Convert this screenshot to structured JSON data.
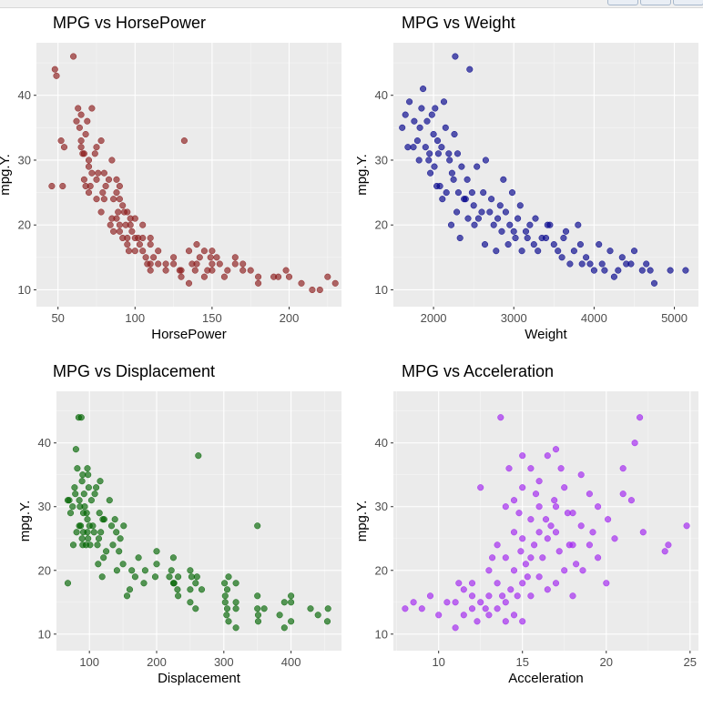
{
  "window": {
    "toolbar_buttons": [
      "zoom-button",
      "export-button",
      "popout-button"
    ]
  },
  "colors": {
    "panel_background": "#ebebeb",
    "grid_major": "#ffffff",
    "tick_text": "#4d4d4d",
    "title_text": "#000000"
  },
  "chart_data": [
    {
      "type": "scatter",
      "title": "MPG vs HorsePower",
      "xlabel": "HorsePower",
      "ylabel": "mpg.Y.",
      "xlim": [
        36,
        234
      ],
      "ylim": [
        7.4,
        48.1
      ],
      "xticks": [
        50,
        100,
        150,
        200
      ],
      "yticks": [
        10,
        20,
        30,
        40
      ],
      "color": "#8b1a1a",
      "grid": true,
      "x": [
        46,
        48,
        49,
        52,
        53,
        54,
        60,
        62,
        63,
        64,
        65,
        65,
        65,
        66,
        67,
        67,
        68,
        68,
        69,
        70,
        70,
        70,
        71,
        72,
        72,
        74,
        75,
        75,
        75,
        76,
        78,
        78,
        79,
        80,
        80,
        81,
        83,
        84,
        85,
        85,
        86,
        86,
        88,
        88,
        88,
        89,
        90,
        90,
        90,
        90,
        92,
        92,
        93,
        94,
        95,
        95,
        95,
        96,
        97,
        97,
        98,
        100,
        100,
        100,
        102,
        103,
        105,
        105,
        105,
        107,
        108,
        110,
        110,
        110,
        110,
        112,
        115,
        115,
        120,
        120,
        125,
        125,
        129,
        130,
        130,
        132,
        135,
        135,
        137,
        139,
        140,
        140,
        142,
        145,
        145,
        147,
        149,
        150,
        150,
        150,
        153,
        155,
        158,
        160,
        165,
        165,
        170,
        170,
        175,
        180,
        180,
        190,
        193,
        198,
        200,
        208,
        215,
        220,
        225,
        230
      ],
      "y": [
        26,
        44,
        43,
        33,
        26,
        32,
        46,
        36,
        38,
        35,
        37,
        33,
        32,
        31,
        31,
        27,
        26,
        34,
        36,
        29,
        25,
        30,
        26,
        38,
        28,
        31,
        24,
        27,
        32,
        28,
        22,
        33,
        25,
        24,
        28,
        26,
        27,
        20,
        21,
        30,
        19,
        24,
        21,
        25,
        27,
        22,
        19,
        20,
        24,
        26,
        23,
        18,
        22,
        20,
        18,
        17,
        22,
        16,
        20,
        21,
        19,
        18,
        16,
        21,
        18,
        17,
        18,
        20,
        16,
        15,
        14,
        18,
        14,
        17,
        13,
        15,
        14,
        16,
        14,
        13,
        14,
        15,
        13,
        12,
        13,
        33,
        11,
        16,
        14,
        13,
        17,
        14,
        15,
        12,
        16,
        13,
        15,
        14,
        16,
        13,
        15,
        14,
        12,
        13,
        15,
        14,
        14,
        13,
        13,
        12,
        11,
        12,
        12,
        13,
        12,
        11,
        10,
        10,
        12,
        11
      ],
      "chart_type": "scatter"
    },
    {
      "type": "scatter",
      "title": "MPG vs Weight",
      "xlabel": "Weight",
      "ylabel": "mpg.Y.",
      "xlim": [
        1500,
        5300
      ],
      "ylim": [
        7.4,
        48.1
      ],
      "xticks": [
        2000,
        3000,
        4000,
        5000
      ],
      "yticks": [
        10,
        20,
        30,
        40
      ],
      "color": "#00008b",
      "grid": true,
      "x": [
        1610,
        1650,
        1680,
        1700,
        1750,
        1760,
        1800,
        1820,
        1830,
        1850,
        1870,
        1900,
        1920,
        1940,
        1950,
        1960,
        1980,
        2000,
        2010,
        2020,
        2040,
        2050,
        2060,
        2080,
        2100,
        2110,
        2130,
        2150,
        2160,
        2190,
        2200,
        2220,
        2230,
        2250,
        2260,
        2270,
        2290,
        2300,
        2310,
        2330,
        2350,
        2380,
        2400,
        2420,
        2430,
        2450,
        2480,
        2500,
        2510,
        2540,
        2560,
        2600,
        2620,
        2640,
        2650,
        2700,
        2720,
        2750,
        2780,
        2800,
        2830,
        2850,
        2870,
        2900,
        2930,
        2950,
        2980,
        3000,
        3020,
        3050,
        3080,
        3100,
        3150,
        3170,
        3200,
        3250,
        3270,
        3300,
        3350,
        3400,
        3420,
        3450,
        3500,
        3550,
        3600,
        3620,
        3650,
        3700,
        3750,
        3800,
        3830,
        3850,
        3900,
        3950,
        4000,
        4060,
        4100,
        4130,
        4200,
        4250,
        4300,
        4350,
        4400,
        4460,
        4500,
        4600,
        4650,
        4700,
        4750,
        4950,
        5140
      ],
      "y": [
        35,
        37,
        32,
        39,
        32,
        36,
        33,
        30,
        35,
        38,
        41,
        32,
        36,
        30,
        31,
        28,
        37,
        34,
        29,
        38,
        26,
        33,
        31,
        26,
        32,
        24,
        39,
        35,
        25,
        31,
        30,
        20,
        28,
        27,
        34,
        46,
        22,
        31,
        25,
        18,
        29,
        24,
        24,
        27,
        21,
        44,
        25,
        23,
        20,
        29,
        21,
        22,
        25,
        17,
        30,
        22,
        24,
        20,
        16,
        21,
        23,
        19,
        27,
        22,
        17,
        20,
        25,
        19,
        18,
        21,
        23,
        16,
        19,
        18,
        20,
        17,
        21,
        16,
        18,
        18,
        20,
        20,
        17,
        16,
        15,
        18,
        19,
        14,
        16,
        20,
        17,
        14,
        15,
        14,
        13,
        17,
        14,
        13,
        16,
        12,
        13,
        15,
        14,
        14,
        16,
        13,
        14,
        13,
        11,
        13,
        13
      ],
      "chart_type": "scatter"
    },
    {
      "type": "scatter",
      "title": "MPG vs Displacement",
      "xlabel": "Displacement",
      "ylabel": "mpg.Y.",
      "xlim": [
        51,
        475
      ],
      "ylim": [
        7.4,
        48.1
      ],
      "xticks": [
        100,
        200,
        300,
        400
      ],
      "yticks": [
        10,
        20,
        30,
        40
      ],
      "color": "#006400",
      "grid": true,
      "x": [
        68,
        68,
        70,
        72,
        75,
        76,
        78,
        79,
        80,
        81,
        82,
        84,
        85,
        85,
        86,
        87,
        88,
        89,
        89,
        90,
        90,
        91,
        91,
        92,
        93,
        95,
        96,
        97,
        97,
        97,
        98,
        98,
        99,
        100,
        101,
        103,
        105,
        107,
        108,
        110,
        112,
        113,
        114,
        115,
        116,
        117,
        119,
        120,
        121,
        122,
        125,
        130,
        133,
        135,
        138,
        140,
        141,
        144,
        146,
        150,
        151,
        156,
        160,
        163,
        168,
        173,
        181,
        183,
        198,
        200,
        200,
        219,
        222,
        225,
        225,
        226,
        231,
        232,
        232,
        250,
        250,
        250,
        252,
        258,
        258,
        260,
        262,
        267,
        301,
        302,
        302,
        304,
        305,
        305,
        307,
        307,
        318,
        318,
        318,
        318,
        350,
        350,
        350,
        351,
        351,
        360,
        383,
        390,
        390,
        400,
        400,
        400,
        429,
        440,
        454,
        455
      ],
      "y": [
        18,
        31,
        31,
        29,
        30,
        24,
        33,
        32,
        39,
        26,
        36,
        44,
        27,
        31,
        30,
        27,
        44,
        25,
        34,
        24,
        35,
        29,
        26,
        32,
        30,
        24,
        29,
        26,
        28,
        36,
        25,
        35,
        33,
        27,
        24,
        31,
        27,
        26,
        32,
        33,
        24,
        21,
        25,
        29,
        34,
        26,
        19,
        28,
        22,
        28,
        23,
        31,
        27,
        24,
        28,
        26,
        20,
        23,
        25,
        21,
        27,
        16,
        17,
        20,
        19,
        22,
        18,
        20,
        19,
        21,
        23,
        19,
        20,
        18,
        22,
        18,
        17,
        19,
        16,
        17,
        20,
        15,
        19,
        18,
        14,
        19,
        38,
        17,
        18,
        15,
        16,
        13,
        14,
        17,
        19,
        12,
        18,
        15,
        14,
        11,
        27,
        16,
        14,
        13,
        12,
        14,
        13,
        11,
        15,
        16,
        15,
        12,
        14,
        13,
        12,
        14
      ],
      "chart_type": "scatter"
    },
    {
      "type": "scatter",
      "title": "MPG vs Acceleration",
      "xlabel": "Acceleration",
      "ylabel": "mpg.Y.",
      "xlim": [
        7.3,
        25.5
      ],
      "ylim": [
        7.4,
        48.1
      ],
      "xticks": [
        10,
        15,
        20,
        25
      ],
      "yticks": [
        10,
        20,
        30,
        40
      ],
      "color": "#a020f0",
      "grid": true,
      "x": [
        8,
        8.5,
        9,
        9.5,
        10,
        10.5,
        11,
        11,
        11.2,
        11.5,
        11.5,
        12,
        12,
        12,
        12.3,
        12.5,
        12.5,
        12.8,
        13,
        13,
        13,
        13.2,
        13.5,
        13.5,
        13.5,
        13.7,
        13.8,
        14,
        14,
        14,
        14,
        14.2,
        14.3,
        14.5,
        14.5,
        14.5,
        14.5,
        14.7,
        14.8,
        14.9,
        15,
        15,
        15,
        15,
        15,
        15.2,
        15.3,
        15.5,
        15.5,
        15.5,
        15.5,
        15.7,
        15.8,
        16,
        16,
        16,
        16,
        16.2,
        16.4,
        16.5,
        16.5,
        16.5,
        16.7,
        16.9,
        17,
        17,
        17,
        17,
        17.2,
        17.3,
        17.5,
        17.5,
        17.7,
        17.8,
        18,
        18,
        18,
        18.2,
        18.5,
        18.5,
        18.6,
        19,
        19,
        19.2,
        19.5,
        19.5,
        20,
        20.1,
        20.5,
        21,
        21,
        21.5,
        21.7,
        22,
        22.2,
        23.5,
        23.7,
        24.8
      ],
      "y": [
        14,
        15,
        14,
        16,
        13,
        15,
        11,
        15,
        18,
        13,
        17,
        14,
        16,
        18,
        12,
        15,
        33,
        14,
        13,
        16,
        20,
        22,
        14,
        18,
        24,
        44,
        16,
        12,
        15,
        22,
        30,
        36,
        17,
        13,
        20,
        26,
        31,
        16,
        29,
        23,
        12,
        18,
        25,
        33,
        38,
        21,
        19,
        16,
        22,
        28,
        36,
        24,
        32,
        19,
        26,
        30,
        34,
        22,
        28,
        17,
        25,
        38,
        27,
        31,
        18,
        26,
        30,
        39,
        23,
        36,
        20,
        33,
        29,
        24,
        16,
        24,
        29,
        21,
        35,
        27,
        20,
        24,
        32,
        26,
        22,
        30,
        18,
        28,
        25,
        32,
        36,
        31,
        40,
        44,
        26,
        23,
        24,
        27
      ],
      "chart_type": "scatter"
    }
  ]
}
